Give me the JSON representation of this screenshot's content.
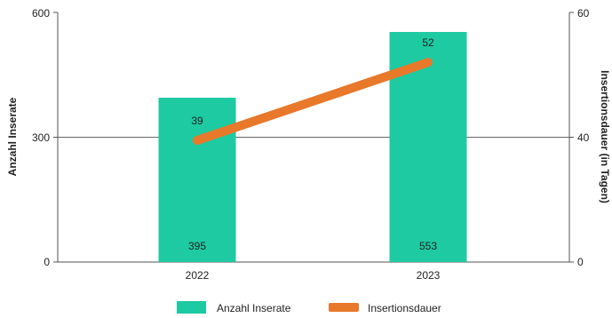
{
  "chart_data": {
    "type": "bar",
    "categories": [
      "2022",
      "2023"
    ],
    "series": [
      {
        "name": "Anzahl Inserate",
        "type": "bar",
        "axis": "left",
        "values": [
          395,
          553
        ],
        "labels": [
          "395",
          "553"
        ],
        "color": "#1ecaa2"
      },
      {
        "name": "Insertionsdauer",
        "type": "line",
        "axis": "right",
        "values": [
          39,
          52
        ],
        "labels": [
          "39",
          "52"
        ],
        "color": "#e8782a"
      }
    ],
    "ylabel": "Anzahl Inserate",
    "y2label": "Insertionsdauer (in Tagen)",
    "ylim": [
      0,
      600
    ],
    "y2lim": [
      0,
      60
    ],
    "yticks": [
      "0",
      "300",
      "600"
    ],
    "y2ticks": [
      "0",
      "40",
      "60"
    ],
    "grid": "horizontal",
    "legend_position": "bottom"
  }
}
